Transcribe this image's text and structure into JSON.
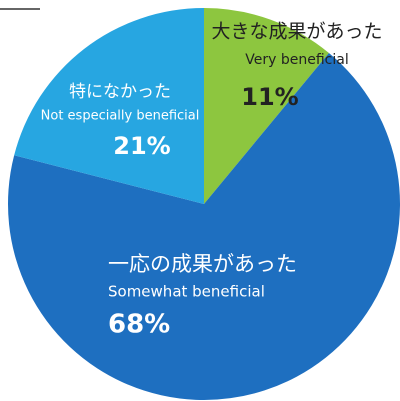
{
  "chart_data": {
    "type": "pie",
    "categories": [
      "大きな成果があった",
      "一応の成果があった",
      "特になかった"
    ],
    "subcategories": [
      "Very beneficial",
      "Somewhat beneficial",
      "Not especially beneficial"
    ],
    "values": [
      11,
      68,
      21
    ],
    "value_labels": [
      "11%",
      "68%",
      "21%"
    ],
    "colors": [
      "#8dc63f",
      "#1e6fc0",
      "#27a6e1"
    ]
  }
}
